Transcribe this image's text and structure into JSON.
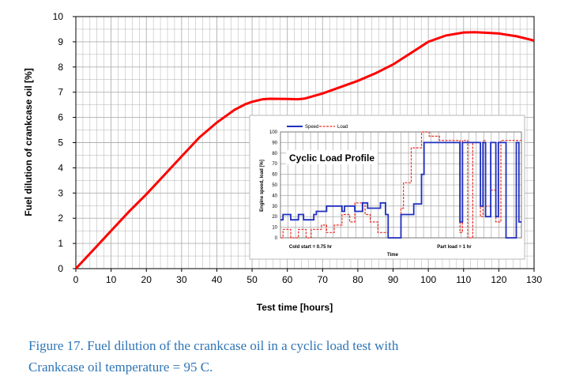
{
  "chart_data": [
    {
      "type": "line",
      "xlabel": "Test time [hours]",
      "ylabel": "Fuel dilution of crankcase oil [%]",
      "xlim": [
        0,
        130
      ],
      "ylim": [
        0,
        10
      ],
      "xticks": [
        "0",
        "10",
        "20",
        "30",
        "40",
        "50",
        "60",
        "70",
        "80",
        "90",
        "100",
        "110",
        "120",
        "130"
      ],
      "yticks": [
        "0",
        "1",
        "2",
        "3",
        "4",
        "5",
        "6",
        "7",
        "8",
        "9",
        "10"
      ],
      "grid": true,
      "colors": {
        "line": "#ff0000",
        "grid": "#b0b0b0"
      },
      "series": [
        {
          "x": [
            0,
            5,
            10,
            15,
            20,
            25,
            30,
            35,
            40,
            45,
            48,
            50,
            53,
            55,
            60,
            63,
            65,
            70,
            75,
            80,
            85,
            90,
            95,
            100,
            105,
            110,
            113,
            115,
            120,
            125,
            130
          ],
          "values": [
            0,
            0.75,
            1.5,
            2.25,
            2.95,
            3.7,
            4.45,
            5.2,
            5.8,
            6.3,
            6.52,
            6.62,
            6.72,
            6.74,
            6.73,
            6.72,
            6.75,
            6.95,
            7.2,
            7.45,
            7.75,
            8.1,
            8.55,
            9.0,
            9.25,
            9.37,
            9.38,
            9.37,
            9.33,
            9.22,
            9.05
          ]
        }
      ]
    },
    {
      "type": "line",
      "title": "Cyclic Load Profile",
      "ylabel": "Engine speed, load [%]",
      "xlabel": "Time",
      "ylim": [
        0,
        100
      ],
      "yticks": [
        "0",
        "10",
        "20",
        "30",
        "40",
        "50",
        "60",
        "70",
        "80",
        "90",
        "100"
      ],
      "legend_position": "top",
      "region_labels": [
        "Cold start = 0.75 hr",
        "Part load = 1 hr"
      ],
      "grid": true,
      "series": [
        {
          "name": "Speed",
          "color": "#1f2fbf",
          "x": [
            0,
            1,
            1,
            4,
            4,
            7,
            7,
            9,
            9,
            13,
            13,
            14,
            14,
            18,
            18,
            24,
            24,
            25,
            25,
            29,
            29,
            32,
            32,
            34,
            34,
            39,
            39,
            41,
            41,
            42,
            42,
            47,
            47,
            52,
            52,
            55,
            55,
            56,
            56,
            60,
            60,
            70,
            70,
            71,
            71,
            72,
            72,
            78,
            78,
            79,
            79,
            80,
            80,
            82,
            82,
            84,
            84,
            85,
            85,
            86,
            86,
            88,
            88,
            92,
            92,
            93,
            93,
            94
          ],
          "values": [
            17,
            17,
            22,
            22,
            17,
            17,
            22,
            22,
            17,
            17,
            22,
            22,
            25,
            25,
            30,
            30,
            25,
            25,
            30,
            30,
            25,
            25,
            33,
            33,
            28,
            28,
            33,
            33,
            22,
            22,
            0,
            0,
            22,
            22,
            32,
            32,
            60,
            60,
            90,
            90,
            90,
            90,
            15,
            15,
            90,
            90,
            90,
            90,
            30,
            30,
            90,
            90,
            20,
            20,
            90,
            90,
            20,
            20,
            90,
            90,
            90,
            90,
            0,
            0,
            90,
            90,
            15,
            15
          ]
        },
        {
          "name": "Load",
          "color": "#e8302a",
          "x": [
            0,
            1,
            1,
            4,
            4,
            7,
            7,
            10,
            10,
            12,
            12,
            16,
            16,
            18,
            18,
            21,
            21,
            24,
            24,
            27,
            27,
            29,
            29,
            33,
            33,
            35,
            35,
            38,
            38,
            42,
            42,
            47,
            47,
            48,
            48,
            51,
            51,
            55,
            55,
            58,
            58,
            62,
            62,
            64,
            64,
            70,
            70,
            71,
            71,
            73,
            73,
            75,
            75,
            78,
            78,
            79,
            79,
            80,
            80,
            82,
            82,
            84,
            84,
            86,
            86,
            88,
            88,
            94
          ],
          "values": [
            0,
            0,
            8,
            8,
            0,
            0,
            8,
            8,
            0,
            0,
            8,
            8,
            12,
            12,
            5,
            5,
            12,
            12,
            22,
            22,
            15,
            15,
            33,
            33,
            22,
            22,
            15,
            15,
            5,
            5,
            0,
            0,
            28,
            28,
            52,
            52,
            85,
            85,
            100,
            100,
            96,
            96,
            92,
            92,
            92,
            92,
            5,
            5,
            92,
            92,
            0,
            0,
            90,
            90,
            20,
            20,
            92,
            92,
            30,
            30,
            45,
            45,
            15,
            15,
            92,
            92,
            92,
            92
          ]
        }
      ]
    }
  ],
  "caption": {
    "line1": "Figure 17. Fuel dilution of the crankcase oil in a cyclic load test with",
    "line2": "Crankcase oil temperature = 95 C."
  }
}
